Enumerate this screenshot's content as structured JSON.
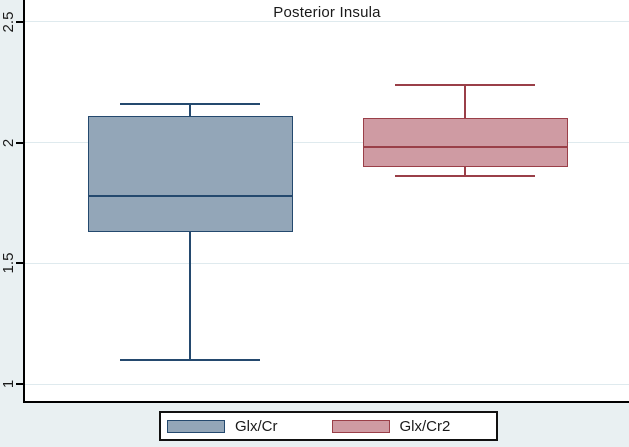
{
  "figure": {
    "outer_background": "#e9f0f2",
    "plot_background": "#ffffff",
    "gridline_color": "#dfeaee",
    "axis_color": "#000000",
    "text_color": "#1a1a1a"
  },
  "chart_data": {
    "type": "box",
    "title": "Posterior Insula",
    "xlabel": "",
    "ylabel": "",
    "ylim": [
      0.93,
      2.59
    ],
    "yticks": [
      {
        "value": 1,
        "label": "1"
      },
      {
        "value": 1.5,
        "label": "1.5"
      },
      {
        "value": 2,
        "label": "2"
      },
      {
        "value": 2.5,
        "label": "2.5"
      }
    ],
    "grid": true,
    "legend_position": "bottom-center",
    "series": [
      {
        "name": "Glx/Cr",
        "fill": "#93a6b8",
        "stroke": "#24496e",
        "whisker_low": 1.1,
        "q1": 1.63,
        "median": 1.78,
        "q3": 2.11,
        "whisker_high": 2.16
      },
      {
        "name": "Glx/Cr2",
        "fill": "#cf9ba3",
        "stroke": "#9a3f48",
        "whisker_low": 1.86,
        "q1": 1.9,
        "median": 1.98,
        "q3": 2.1,
        "whisker_high": 2.24
      }
    ]
  }
}
